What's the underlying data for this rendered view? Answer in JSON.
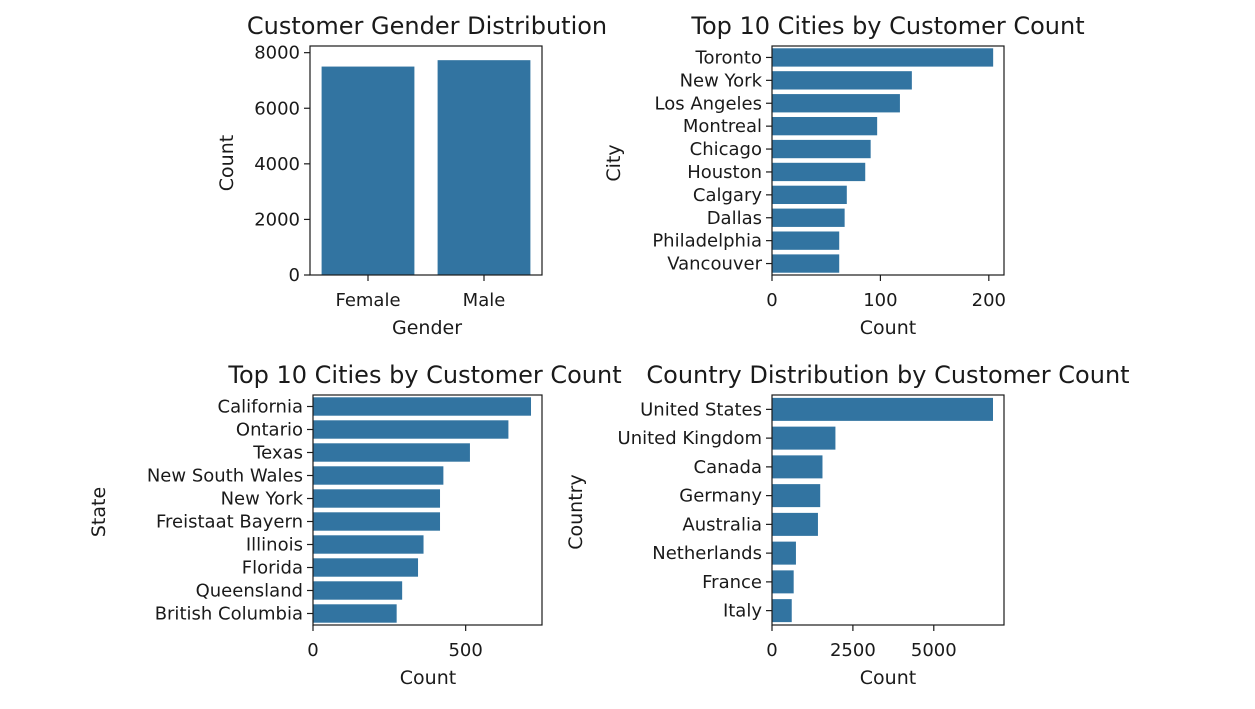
{
  "chart_data": [
    {
      "type": "bar",
      "orientation": "vertical",
      "title": "Customer Gender Distribution",
      "xlabel": "Gender",
      "ylabel": "Count",
      "categories": [
        "Female",
        "Male"
      ],
      "values": [
        7500,
        7730
      ],
      "ylim": [
        0,
        8240
      ],
      "ticks": [
        0,
        2000,
        4000,
        6000,
        8000
      ],
      "tick_labels": [
        "0",
        "2000",
        "4000",
        "6000",
        "8000"
      ],
      "color": "#3274a1"
    },
    {
      "type": "bar",
      "orientation": "horizontal",
      "title": "Top 10 Cities by Customer Count",
      "xlabel": "Count",
      "ylabel": "City",
      "categories": [
        "Toronto",
        "New York",
        "Los Angeles",
        "Montreal",
        "Chicago",
        "Houston",
        "Calgary",
        "Dallas",
        "Philadelphia",
        "Vancouver"
      ],
      "values": [
        204,
        129,
        118,
        97,
        91,
        86,
        69,
        67,
        62,
        62
      ],
      "xlim": [
        0,
        214
      ],
      "ticks": [
        0,
        100,
        200
      ],
      "tick_labels": [
        "0",
        "100",
        "200"
      ],
      "color": "#3274a1"
    },
    {
      "type": "bar",
      "orientation": "horizontal",
      "title": "Top 10 Cities by Customer Count",
      "xlabel": "Count",
      "ylabel": "State",
      "categories": [
        "California",
        "Ontario",
        "Texas",
        "New South Wales",
        "New York",
        "Freistaat Bayern",
        "Illinois",
        "Florida",
        "Queensland",
        "British Columbia"
      ],
      "values": [
        714,
        640,
        514,
        427,
        416,
        416,
        362,
        344,
        292,
        274
      ],
      "xlim": [
        0,
        750
      ],
      "ticks": [
        0,
        500
      ],
      "tick_labels": [
        "0",
        "500"
      ],
      "color": "#3274a1"
    },
    {
      "type": "bar",
      "orientation": "horizontal",
      "title": "Country Distribution by Customer Count",
      "xlabel": "Count",
      "ylabel": "Country",
      "categories": [
        "United States",
        "United Kingdom",
        "Canada",
        "Germany",
        "Australia",
        "Netherlands",
        "France",
        "Italy"
      ],
      "values": [
        6830,
        1960,
        1560,
        1490,
        1420,
        740,
        670,
        610
      ],
      "xlim": [
        0,
        7170
      ],
      "ticks": [
        0,
        2500,
        5000
      ],
      "tick_labels": [
        "0",
        "2500",
        "5000"
      ],
      "color": "#3274a1"
    }
  ]
}
